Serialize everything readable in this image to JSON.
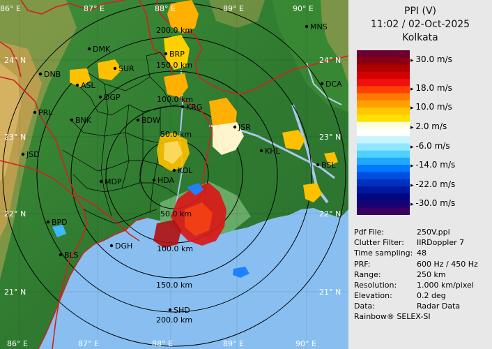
{
  "title": {
    "product": "PPI (V)",
    "datetime": "11:02 / 02-Oct-2025",
    "site": "Kolkata"
  },
  "legend": [
    {
      "label": "30.0 m/s"
    },
    {
      "label": "18.0 m/s"
    },
    {
      "label": "10.0 m/s"
    },
    {
      "label": "2.0 m/s"
    },
    {
      "label": "-6.0 m/s"
    },
    {
      "label": "-14.0 m/s"
    },
    {
      "label": "-22.0 m/s"
    },
    {
      "label": "-30.0 m/s"
    }
  ],
  "legend_colors": [
    "#6b0030",
    "#8a0010",
    "#b00000",
    "#d40000",
    "#f01010",
    "#ff4000",
    "#ff7a00",
    "#ffa000",
    "#ffc800",
    "#ffe000",
    "#ffffe0",
    "#ffffff",
    "#c8f4ff",
    "#90e8ff",
    "#50d0ff",
    "#20a8ff",
    "#0078ff",
    "#0050e0",
    "#0030c0",
    "#0018a0",
    "#000880",
    "#1a0070",
    "#380060"
  ],
  "info": [
    {
      "key": "Pdf File:",
      "value": "250V.ppi"
    },
    {
      "key": "Clutter Filter:",
      "value": "IIRDoppler 7"
    },
    {
      "key": "Time sampling:",
      "value": "48"
    },
    {
      "key": "PRF:",
      "value": "600 Hz / 450 Hz"
    },
    {
      "key": "Range:",
      "value": "250 km"
    },
    {
      "key": "Resolution:",
      "value": "1.000 km/pixel"
    },
    {
      "key": "Elevation:",
      "value": "0.2 deg"
    },
    {
      "key": "Data:",
      "value": "Radar Data"
    }
  ],
  "credit": "Rainbow® SELEX-SI",
  "lon_labels": [
    "86° E",
    "87° E",
    "88° E",
    "89° E",
    "90° E"
  ],
  "lat_labels": [
    "24° N",
    "23° N",
    "22° N",
    "21° N"
  ],
  "range_labels": [
    "50.0 km",
    "100.0 km",
    "150.0 km",
    "200.0 km"
  ],
  "cities": [
    "MNS",
    "DMK",
    "BRP",
    "DNB",
    "SUR",
    "ASL",
    "DGP",
    "DCA",
    "KRG",
    "PRL",
    "BNK",
    "BDW",
    "JSR",
    "KHL",
    "JSD",
    "KOL",
    "BSL",
    "MDP",
    "HDA",
    "BPD",
    "DGH",
    "BLS",
    "SHD"
  ]
}
